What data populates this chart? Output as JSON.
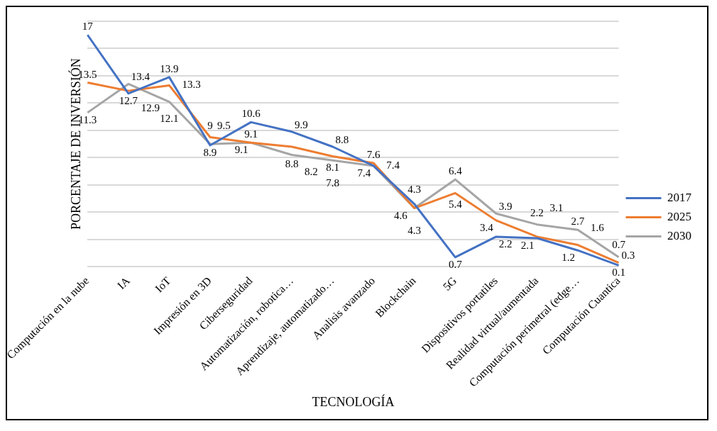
{
  "chart_data": {
    "type": "line",
    "xlabel": "TECNOLOGÍA",
    "ylabel": "PORCENTAJE DE INVERSIÓN",
    "categories": [
      "Computación en la nube",
      "IA",
      "IoT",
      "Impresión en 3D",
      "Ciberseguridad",
      "Automatización, robotica…",
      "Aprendizaje, automatizado…",
      "Analisis avanzado",
      "Blockchain",
      "5G",
      "Dispositivos portatiles",
      "Realidad virtual/aumentada",
      "Computación perimetral (edge…",
      "Computación Cuantica"
    ],
    "series": [
      {
        "name": "2017",
        "color": "#4472c4",
        "values": [
          17,
          12.7,
          13.9,
          8.9,
          10.6,
          9.9,
          8.8,
          7.4,
          4.6,
          0.7,
          2.2,
          2.1,
          1.2,
          0.1
        ]
      },
      {
        "name": "2025",
        "color": "#ed7d31",
        "values": [
          13.5,
          12.9,
          13.3,
          9.5,
          9.1,
          8.8,
          8.1,
          7.6,
          4.3,
          5.4,
          3.4,
          2.2,
          1.6,
          0.3
        ]
      },
      {
        "name": "2030",
        "color": "#a5a5a5",
        "values": [
          11.3,
          13.4,
          12.1,
          9,
          9.1,
          8.2,
          7.8,
          7.4,
          4.3,
          6.4,
          3.9,
          3.1,
          2.7,
          0.7
        ]
      }
    ],
    "ylim": [
      0,
      18
    ],
    "yticks": [
      {
        "value": 0,
        "label": null
      },
      {
        "value": 2,
        "label": null
      },
      {
        "value": 4,
        "label": null
      },
      {
        "value": 6,
        "label": null
      },
      {
        "value": 8,
        "label": null
      },
      {
        "value": 10,
        "label": null
      },
      {
        "value": 12,
        "label": null
      },
      {
        "value": 14,
        "label": null
      },
      {
        "value": 16,
        "label": null
      },
      {
        "value": 18,
        "label": null
      }
    ],
    "tick_labels": "x",
    "grid": "y",
    "legend": "right",
    "marker": "none",
    "line_style": "solid",
    "data_labels": true
  }
}
